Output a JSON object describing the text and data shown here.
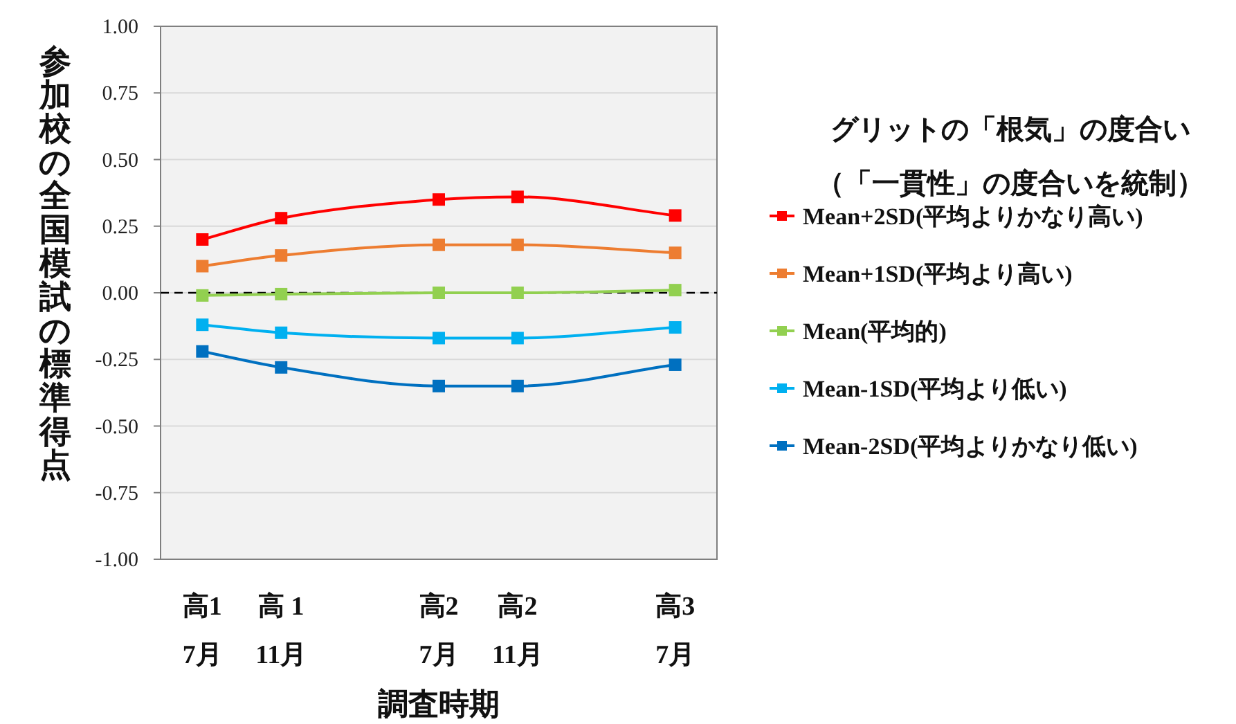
{
  "chart_data": {
    "type": "line",
    "xlabel": "調査時期",
    "ylabel": "参加校の全国模試の標準得点",
    "legend_title": "グリットの「根気」の度合い（「一貫性」の度合いを統制）",
    "categories": [
      "高1\n7月",
      "高 1\n11月",
      null,
      "高2\n7月",
      "高2\n11月",
      null,
      "高3\n7月"
    ],
    "ylim": [
      -1.0,
      1.0
    ],
    "yticks": [
      {
        "value": -1.0,
        "label": "-1.00"
      },
      {
        "value": -0.75,
        "label": "-0.75"
      },
      {
        "value": -0.5,
        "label": "-0.50"
      },
      {
        "value": -0.25,
        "label": "-0.25"
      },
      {
        "value": 0,
        "label": "0.00"
      },
      {
        "value": 0.25,
        "label": "0.25"
      },
      {
        "value": 0.5,
        "label": "0.50"
      },
      {
        "value": 0.75,
        "label": "0.75"
      },
      {
        "value": 1.0,
        "label": "1.00"
      }
    ],
    "grid": "y",
    "legend": "right",
    "marker": "square",
    "line_style": "solid",
    "ref_lines": [
      {
        "axis": "y",
        "value": 0,
        "color": "#000000",
        "line_style": "dashed"
      }
    ],
    "series": [
      {
        "name": "Mean+2SD(平均よりかなり高い)",
        "color": "#ff0000",
        "values": [
          0.2,
          0.28,
          null,
          0.35,
          0.36,
          null,
          0.29
        ]
      },
      {
        "name": "Mean+1SD(平均より高い)",
        "color": "#ed7d31",
        "values": [
          0.1,
          0.14,
          null,
          0.18,
          0.18,
          null,
          0.15
        ]
      },
      {
        "name": "Mean(平均的)",
        "color": "#92d050",
        "values": [
          -0.01,
          -0.005,
          null,
          0.0,
          0.0,
          null,
          0.01
        ]
      },
      {
        "name": "Mean-1SD(平均より低い)",
        "color": "#00b0f0",
        "values": [
          -0.12,
          -0.15,
          null,
          -0.17,
          -0.17,
          null,
          -0.13
        ]
      },
      {
        "name": "Mean-2SD(平均よりかなり低い)",
        "color": "#0070c0",
        "values": [
          -0.22,
          -0.28,
          null,
          -0.35,
          -0.35,
          null,
          -0.27
        ]
      }
    ]
  }
}
